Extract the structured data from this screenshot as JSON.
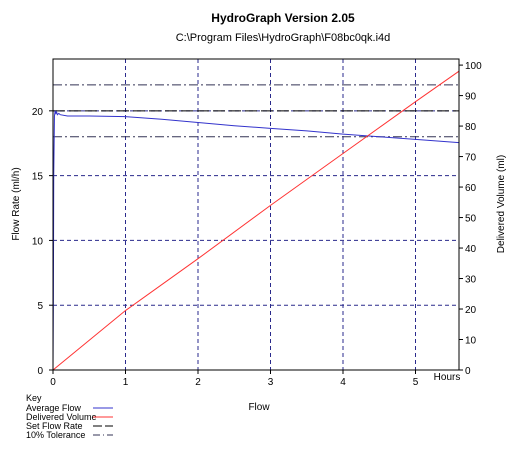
{
  "chart_data": {
    "type": "line",
    "title": "HydroGraph Version 2.05",
    "subtitle": "C:\\Program Files\\HydroGraph\\F08bc0qk.i4d",
    "xlabel": "Flow",
    "x_unit_label": "Hours",
    "ylabel_left": "Flow Rate (ml/h)",
    "ylabel_right": "Delivered Volume (ml)",
    "xlim": [
      0,
      5.6
    ],
    "ylim_left": [
      0,
      24
    ],
    "ylim_right": [
      0,
      102
    ],
    "x_ticks": [
      0,
      1,
      2,
      3,
      4,
      5
    ],
    "y_left_ticks": [
      0,
      5,
      10,
      15,
      20
    ],
    "y_right_ticks": [
      0,
      10,
      20,
      30,
      40,
      50,
      60,
      70,
      80,
      90,
      100
    ],
    "grid": true,
    "key_title": "Key",
    "series": [
      {
        "name": "Average Flow",
        "axis": "left",
        "color": "#3333cc",
        "x": [
          0,
          0.005,
          0.01,
          0.02,
          0.03,
          0.04,
          0.05,
          0.06,
          0.08,
          0.1,
          0.2,
          0.5,
          1.0,
          1.5,
          2.0,
          2.5,
          3.0,
          3.5,
          4.0,
          4.5,
          5.0,
          5.6
        ],
        "y": [
          0,
          5,
          15,
          19.6,
          20.0,
          19.8,
          19.9,
          19.7,
          19.8,
          19.7,
          19.6,
          19.6,
          19.55,
          19.35,
          19.1,
          18.85,
          18.65,
          18.45,
          18.2,
          18.0,
          17.8,
          17.55
        ]
      },
      {
        "name": "Delivered Volume",
        "axis": "right",
        "color": "#ff3333",
        "x": [
          0,
          1,
          2,
          3,
          4,
          5,
          5.6
        ],
        "y": [
          0,
          19.5,
          36.5,
          54,
          71,
          88,
          98
        ]
      }
    ],
    "reference_lines": [
      {
        "name": "Set Flow Rate",
        "axis": "left",
        "value": 20,
        "style": "long-dash"
      },
      {
        "name": "10% Tolerance",
        "axis": "left",
        "values": [
          18,
          22
        ],
        "style": "dash-dot"
      }
    ],
    "colors": {
      "grid": "#2a2a8c",
      "set_flow": "#000000",
      "tolerance": "#333355"
    }
  }
}
